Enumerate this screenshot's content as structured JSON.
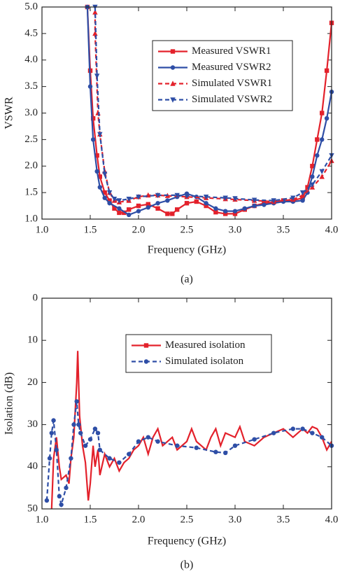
{
  "chart_data": [
    {
      "type": "line",
      "caption": "(a)",
      "x_label": "Frequency (GHz)",
      "y_label": "VSWR",
      "xlim": [
        1,
        4
      ],
      "ylim": [
        1,
        5
      ],
      "xticks": [
        {
          "value": 1,
          "label": "1.0"
        },
        1.5,
        {
          "value": 2,
          "label": "2.0"
        },
        2.5,
        {
          "value": 3,
          "label": "3.0"
        },
        3.5,
        {
          "value": 4,
          "label": "4.0"
        }
      ],
      "yticks": [
        {
          "value": 1,
          "label": "1.0"
        },
        1.5,
        {
          "value": 2,
          "label": "2.0"
        },
        2.5,
        {
          "value": 3,
          "label": "3.0"
        },
        3.5,
        {
          "value": 4,
          "label": "4.0"
        },
        4.5,
        {
          "value": 5,
          "label": "5.0"
        }
      ],
      "y_inverted": false,
      "legend": "upper right",
      "series": [
        {
          "name": "Measured VSWR1",
          "color": "#e3212b",
          "dashed": false,
          "marker": "square",
          "x": [
            1.47,
            1.5,
            1.53,
            1.57,
            1.6,
            1.65,
            1.7,
            1.75,
            1.8,
            1.85,
            1.9,
            2.0,
            2.1,
            2.2,
            2.3,
            2.35,
            2.4,
            2.5,
            2.6,
            2.7,
            2.8,
            2.9,
            3.0,
            3.1,
            3.2,
            3.3,
            3.4,
            3.5,
            3.6,
            3.7,
            3.75,
            3.8,
            3.85,
            3.9,
            3.95,
            4.0
          ],
          "values": [
            5.0,
            3.8,
            2.9,
            2.2,
            1.8,
            1.5,
            1.35,
            1.2,
            1.12,
            1.12,
            1.18,
            1.25,
            1.28,
            1.2,
            1.1,
            1.1,
            1.18,
            1.3,
            1.33,
            1.25,
            1.13,
            1.1,
            1.1,
            1.18,
            1.25,
            1.3,
            1.32,
            1.35,
            1.35,
            1.4,
            1.6,
            2.0,
            2.5,
            3.0,
            3.8,
            4.7
          ]
        },
        {
          "name": "Measured VSWR2",
          "color": "#2e4ea6",
          "dashed": false,
          "marker": "circle",
          "x": [
            1.47,
            1.5,
            1.53,
            1.57,
            1.6,
            1.65,
            1.7,
            1.8,
            1.9,
            2.0,
            2.1,
            2.2,
            2.3,
            2.4,
            2.5,
            2.6,
            2.7,
            2.8,
            2.9,
            3.0,
            3.1,
            3.2,
            3.3,
            3.4,
            3.5,
            3.6,
            3.7,
            3.75,
            3.8,
            3.85,
            3.9,
            3.95,
            4.0
          ],
          "values": [
            5.0,
            3.5,
            2.5,
            1.9,
            1.6,
            1.4,
            1.3,
            1.2,
            1.08,
            1.15,
            1.22,
            1.3,
            1.35,
            1.42,
            1.48,
            1.42,
            1.3,
            1.2,
            1.15,
            1.15,
            1.2,
            1.25,
            1.27,
            1.3,
            1.33,
            1.33,
            1.35,
            1.5,
            1.8,
            2.2,
            2.5,
            2.9,
            3.4
          ]
        },
        {
          "name": "Simulated VSWR1",
          "color": "#e3212b",
          "dashed": true,
          "marker": "triangle-up",
          "x": [
            1.55,
            1.55,
            1.58,
            1.6,
            1.65,
            1.7,
            1.75,
            1.8,
            1.9,
            2.0,
            2.1,
            2.2,
            2.3,
            2.5,
            2.7,
            2.9,
            3.0,
            3.2,
            3.4,
            3.6,
            3.7,
            3.8,
            3.9,
            4.0
          ],
          "values": [
            4.9,
            4.5,
            3.0,
            2.6,
            1.9,
            1.5,
            1.35,
            1.32,
            1.35,
            1.42,
            1.45,
            1.45,
            1.44,
            1.42,
            1.4,
            1.38,
            1.37,
            1.35,
            1.33,
            1.37,
            1.45,
            1.6,
            1.8,
            2.1
          ]
        },
        {
          "name": "Simulated VSWR2",
          "color": "#2e4ea6",
          "dashed": true,
          "marker": "triangle-down",
          "x": [
            1.55,
            1.57,
            1.6,
            1.65,
            1.7,
            1.75,
            1.8,
            1.9,
            2.0,
            2.2,
            2.4,
            2.5,
            2.7,
            2.9,
            3.0,
            3.2,
            3.4,
            3.6,
            3.7,
            3.8,
            3.9,
            4.0
          ],
          "values": [
            5.0,
            3.7,
            2.6,
            1.85,
            1.5,
            1.38,
            1.35,
            1.38,
            1.42,
            1.45,
            1.45,
            1.44,
            1.42,
            1.4,
            1.39,
            1.36,
            1.35,
            1.4,
            1.5,
            1.65,
            1.9,
            2.2
          ]
        }
      ]
    },
    {
      "type": "line",
      "caption": "(b)",
      "x_label": "Frequency (GHz)",
      "y_label": "Isolation (dB)",
      "xlim": [
        1,
        4
      ],
      "ylim": [
        0,
        50
      ],
      "xticks": [
        {
          "value": 1,
          "label": "1.0"
        },
        1.5,
        {
          "value": 2,
          "label": "2.0"
        },
        2.5,
        {
          "value": 3,
          "label": "3.0"
        },
        3.5,
        {
          "value": 4,
          "label": "4.0"
        }
      ],
      "yticks": [
        0,
        10,
        20,
        30,
        40,
        50
      ],
      "y_inverted": true,
      "legend": "upper right",
      "series": [
        {
          "name": "Measured isolation",
          "color": "#e3212b",
          "dashed": false,
          "marker": "none",
          "x": [
            1.1,
            1.12,
            1.15,
            1.18,
            1.2,
            1.25,
            1.28,
            1.3,
            1.33,
            1.36,
            1.37,
            1.39,
            1.42,
            1.45,
            1.48,
            1.5,
            1.53,
            1.55,
            1.58,
            1.6,
            1.65,
            1.7,
            1.75,
            1.8,
            1.85,
            1.9,
            1.95,
            2.0,
            2.05,
            2.1,
            2.15,
            2.2,
            2.25,
            2.3,
            2.35,
            2.4,
            2.5,
            2.55,
            2.6,
            2.7,
            2.75,
            2.8,
            2.85,
            2.9,
            3.0,
            3.05,
            3.1,
            3.2,
            3.3,
            3.4,
            3.5,
            3.6,
            3.7,
            3.75,
            3.8,
            3.85,
            3.9,
            3.95,
            4.0
          ],
          "values": [
            50,
            38,
            33,
            40,
            43,
            42,
            44,
            38,
            33,
            20,
            12.5,
            28,
            35,
            39,
            48,
            44,
            35,
            40,
            36,
            42,
            37,
            40,
            38,
            41,
            39,
            38,
            36,
            35,
            33,
            37,
            33,
            31,
            35,
            34,
            33,
            36,
            34,
            31,
            34,
            36,
            33,
            31,
            35,
            32,
            33,
            30.5,
            34,
            35,
            33,
            32,
            31,
            33,
            31,
            32,
            30.5,
            31,
            33,
            36,
            34
          ]
        },
        {
          "name": "Simulated isolaton",
          "color": "#2e4ea6",
          "dashed": true,
          "marker": "circle",
          "x": [
            1.05,
            1.08,
            1.1,
            1.12,
            1.15,
            1.18,
            1.2,
            1.25,
            1.3,
            1.33,
            1.36,
            1.38,
            1.4,
            1.45,
            1.5,
            1.55,
            1.58,
            1.6,
            1.7,
            1.8,
            1.9,
            2.0,
            2.1,
            2.2,
            2.4,
            2.6,
            2.8,
            2.9,
            3.0,
            3.2,
            3.4,
            3.6,
            3.7,
            3.8,
            3.9,
            4.0
          ],
          "values": [
            48,
            38,
            32,
            29,
            36,
            47,
            49,
            45,
            38,
            30,
            24.5,
            30,
            32,
            35,
            33.5,
            31,
            32,
            36,
            38,
            39,
            37,
            34,
            33,
            34,
            35,
            35.5,
            36.5,
            36.7,
            35,
            33.5,
            32,
            31,
            31,
            32,
            33,
            35
          ]
        }
      ]
    }
  ]
}
